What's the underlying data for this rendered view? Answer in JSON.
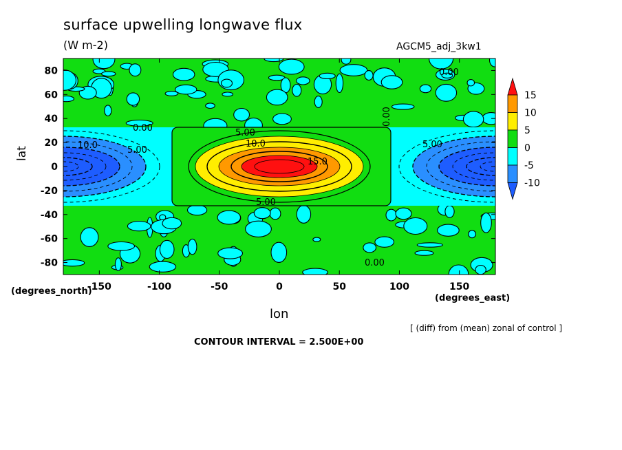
{
  "chart_data": {
    "type": "heatmap",
    "title": "surface upwelling longwave flux",
    "subtitle": "(W m-2)",
    "run_label": "AGCM5_adj_3kw1",
    "xlabel": "lon",
    "ylabel": "lat",
    "x_units": "(degrees_east)",
    "y_units": "(degrees_north)",
    "xlim": [
      -180,
      180
    ],
    "ylim": [
      -90,
      90
    ],
    "xticks": [
      -150,
      -100,
      -50,
      0,
      50,
      100,
      150
    ],
    "yticks": [
      80,
      60,
      40,
      20,
      0,
      -20,
      -40,
      -60,
      -80
    ],
    "note": "[ (diff) from (mean) zonal of control ]",
    "contour_interval": "CONTOUR INTERVAL = 2.500E+00",
    "colorbar": {
      "levels": [
        15,
        10,
        5,
        0,
        -5,
        -10
      ],
      "colors": [
        "#ff1010",
        "#ff9900",
        "#ffee00",
        "#11dd11",
        "#00ffff",
        "#2a8fff",
        "#1e5dff"
      ]
    },
    "features": [
      {
        "kind": "warm_anomaly",
        "center_lon": 0,
        "center_lat": 0,
        "peak": 15
      },
      {
        "kind": "cold_anomaly",
        "center_lon": 180,
        "center_lat": 0,
        "peak": -10
      }
    ],
    "contour_labels": [
      "0.00",
      "10.0",
      "5.00",
      "5.00",
      "10.0",
      "15.0",
      "5.00",
      "5.00",
      "0.00",
      "0.00",
      "0.00"
    ]
  }
}
